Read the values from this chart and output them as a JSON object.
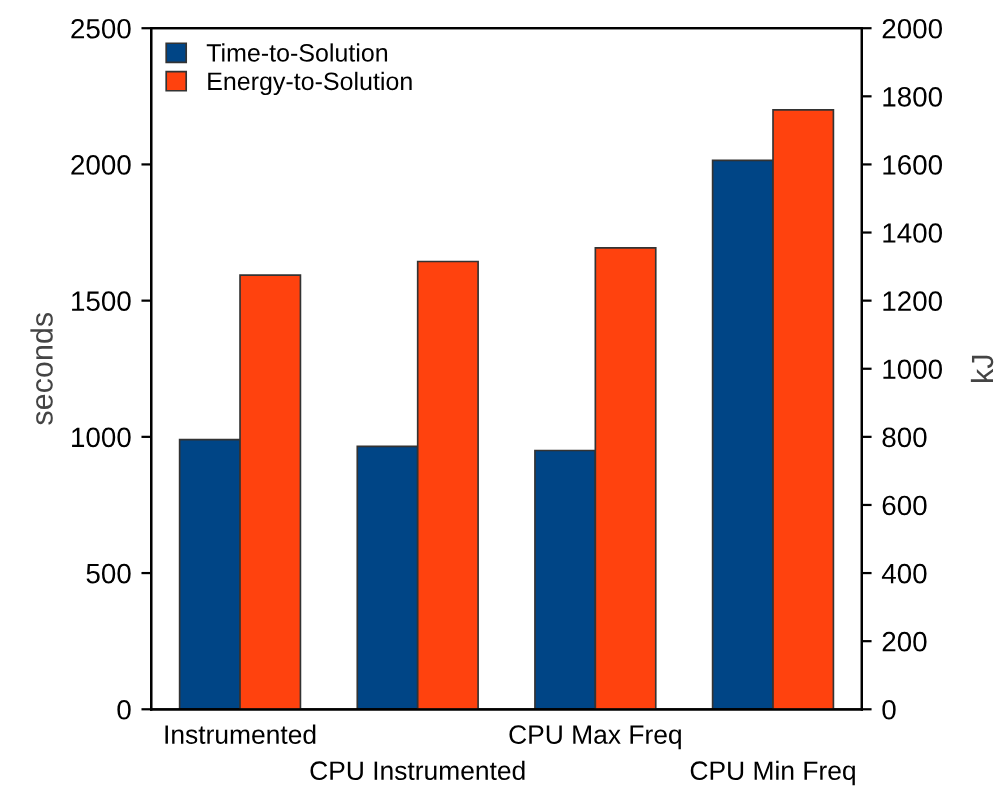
{
  "chart_data": {
    "type": "bar",
    "categories": [
      "Instrumented",
      "CPU Instrumented",
      "CPU Max Freq",
      "CPU Min Freq"
    ],
    "ylabel": "seconds",
    "y2label": "kJ",
    "series": [
      {
        "name": "Time-to-Solution",
        "color": "#004586",
        "values": [
          990,
          965,
          950,
          2015
        ]
      },
      {
        "name": "Energy-to-Solution",
        "color": "#ff420e",
        "values": [
          1275,
          1315,
          1355,
          1760
        ],
        "axis": "y2"
      }
    ],
    "ylim": [
      0,
      2500
    ],
    "yticks": [
      0,
      500,
      1000,
      1500,
      2000,
      2500
    ],
    "y2lim": [
      0,
      2000
    ],
    "y2ticks": [
      0,
      200,
      400,
      600,
      800,
      1000,
      1200,
      1400,
      1600,
      1800,
      2000
    ],
    "legend": "top left",
    "grid": false
  }
}
